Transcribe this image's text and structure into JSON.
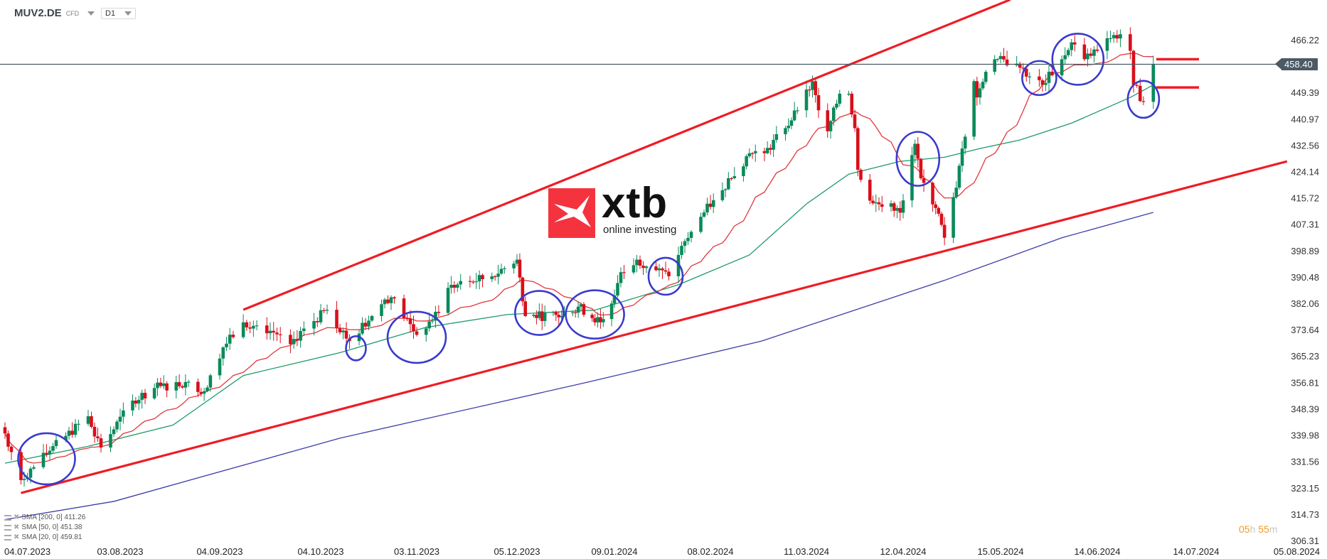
{
  "header": {
    "symbol": "MUV2.DE",
    "instrument_type": "CFD",
    "timeframe": "D1"
  },
  "logo": {
    "brand": "xtb",
    "tagline": "online investing",
    "color": "#f4333f"
  },
  "countdown": {
    "hours": "05",
    "h_unit": "h",
    "minutes": "55",
    "m_unit": "m"
  },
  "legend": [
    {
      "label": "SMA [200, 0] 411.26"
    },
    {
      "label": "SMA [50, 0] 451.38"
    },
    {
      "label": "SMA [20, 0] 459.81"
    }
  ],
  "chart_data": {
    "type": "candlestick",
    "symbol": "MUV2.DE",
    "current_price": 458.4,
    "current_price_label": "458.40",
    "y_ticks": [
      "466.22",
      "458.40",
      "449.39",
      "440.97",
      "432.56",
      "424.14",
      "415.72",
      "407.31",
      "398.89",
      "390.48",
      "382.06",
      "373.64",
      "365.23",
      "356.81",
      "348.39",
      "339.98",
      "331.56",
      "323.15",
      "314.73",
      "306.31"
    ],
    "ylim": [
      306.31,
      466.22
    ],
    "x_ticks": [
      {
        "label": "04.07.2023",
        "date": "2023-07-04"
      },
      {
        "label": "03.08.2023",
        "date": "2023-08-03"
      },
      {
        "label": "04.09.2023",
        "date": "2023-09-04"
      },
      {
        "label": "04.10.2023",
        "date": "2023-10-04"
      },
      {
        "label": "03.11.2023",
        "date": "2023-11-03"
      },
      {
        "label": "05.12.2023",
        "date": "2023-12-05"
      },
      {
        "label": "09.01.2024",
        "date": "2024-01-09"
      },
      {
        "label": "08.02.2024",
        "date": "2024-02-08"
      },
      {
        "label": "11.03.2024",
        "date": "2024-03-11"
      },
      {
        "label": "12.04.2024",
        "date": "2024-04-12"
      },
      {
        "label": "15.05.2024",
        "date": "2024-05-15"
      },
      {
        "label": "14.06.2024",
        "date": "2024-06-14"
      },
      {
        "label": "14.07.2024",
        "date": "2024-07-14"
      },
      {
        "label": "05.08.2024",
        "date": "2024-08-05"
      }
    ],
    "colors": {
      "up": "#0a8a5a",
      "down": "#d90f1a",
      "sma200": "#3c3ca8",
      "sma50": "#1f9a6a",
      "sma20": "#e0383c",
      "trendline": "#ee1c24",
      "annotation": "#3a3acc",
      "price_line": "#4a5a66"
    },
    "close_anchors": [
      [
        "2023-06-28",
        340.5
      ],
      [
        "2023-07-03",
        325.6
      ],
      [
        "2023-07-12",
        335
      ],
      [
        "2023-07-24",
        346
      ],
      [
        "2023-07-28",
        336
      ],
      [
        "2023-08-07",
        351
      ],
      [
        "2023-08-14",
        355
      ],
      [
        "2023-08-25",
        357
      ],
      [
        "2023-08-30",
        354
      ],
      [
        "2023-09-05",
        368
      ],
      [
        "2023-09-11",
        376
      ],
      [
        "2023-09-15",
        375
      ],
      [
        "2023-09-22",
        372
      ],
      [
        "2023-09-25",
        369
      ],
      [
        "2023-09-29",
        374
      ],
      [
        "2023-10-06",
        380
      ],
      [
        "2023-10-13",
        370
      ],
      [
        "2023-10-20",
        378
      ],
      [
        "2023-10-26",
        384
      ],
      [
        "2023-11-03",
        372
      ],
      [
        "2023-11-10",
        379
      ],
      [
        "2023-11-13",
        387
      ],
      [
        "2023-11-20",
        389
      ],
      [
        "2023-11-27",
        390.7
      ],
      [
        "2023-12-05",
        396
      ],
      [
        "2023-12-08",
        378
      ],
      [
        "2023-12-21",
        378
      ],
      [
        "2023-12-27",
        381
      ],
      [
        "2024-01-04",
        376
      ],
      [
        "2024-01-08",
        382
      ],
      [
        "2024-01-11",
        392
      ],
      [
        "2024-01-16",
        396
      ],
      [
        "2024-01-26",
        390.7
      ],
      [
        "2024-01-29",
        397.5
      ],
      [
        "2024-02-05",
        409.7
      ],
      [
        "2024-02-09",
        415
      ],
      [
        "2024-02-15",
        422
      ],
      [
        "2024-02-21",
        430
      ],
      [
        "2024-02-26",
        430
      ],
      [
        "2024-03-04",
        438
      ],
      [
        "2024-03-08",
        443.7
      ],
      [
        "2024-03-13",
        453
      ],
      [
        "2024-03-15",
        443.7
      ],
      [
        "2024-03-18",
        437
      ],
      [
        "2024-03-22",
        449
      ],
      [
        "2024-03-25",
        449
      ],
      [
        "2024-03-27",
        438
      ],
      [
        "2024-03-28",
        424.7
      ],
      [
        "2024-04-02",
        414
      ],
      [
        "2024-04-08",
        414
      ],
      [
        "2024-04-11",
        411
      ],
      [
        "2024-04-16",
        433
      ],
      [
        "2024-04-18",
        422
      ],
      [
        "2024-04-23",
        412.5
      ],
      [
        "2024-04-26",
        403
      ],
      [
        "2024-04-30",
        419
      ],
      [
        "2024-05-02",
        431.5
      ],
      [
        "2024-05-06",
        453
      ],
      [
        "2024-05-07",
        447.8
      ],
      [
        "2024-05-10",
        456
      ],
      [
        "2024-05-13",
        460
      ],
      [
        "2024-05-20",
        458.6
      ],
      [
        "2024-05-24",
        454.5
      ],
      [
        "2024-05-28",
        451.8
      ],
      [
        "2024-06-03",
        460
      ],
      [
        "2024-06-06",
        465.4
      ],
      [
        "2024-06-10",
        460
      ],
      [
        "2024-06-14",
        462.7
      ],
      [
        "2024-06-17",
        466.7
      ],
      [
        "2024-06-21",
        468
      ],
      [
        "2024-06-24",
        462.7
      ],
      [
        "2024-06-25",
        451.8
      ],
      [
        "2024-06-28",
        446.4
      ],
      [
        "2024-07-01",
        458.4
      ]
    ],
    "series": [
      {
        "name": "SMA [200, 0]",
        "points": [
          [
            "2023-06-28",
            313
          ],
          [
            "2023-08-01",
            318.8
          ],
          [
            "2023-10-10",
            339
          ],
          [
            "2023-12-30",
            356.8
          ],
          [
            "2024-02-25",
            370
          ],
          [
            "2024-04-26",
            389.4
          ],
          [
            "2024-06-03",
            403
          ],
          [
            "2024-07-01",
            411.1
          ]
        ]
      },
      {
        "name": "SMA [50, 0]",
        "points": [
          [
            "2023-06-28",
            331
          ],
          [
            "2023-07-24",
            336.4
          ],
          [
            "2023-08-20",
            343.2
          ],
          [
            "2023-09-11",
            359
          ],
          [
            "2023-10-10",
            366.3
          ],
          [
            "2023-11-06",
            374.4
          ],
          [
            "2023-12-02",
            378.5
          ],
          [
            "2024-01-02",
            379.9
          ],
          [
            "2024-01-29",
            388
          ],
          [
            "2024-02-21",
            397.5
          ],
          [
            "2024-03-11",
            413.8
          ],
          [
            "2024-03-25",
            423.3
          ],
          [
            "2024-04-11",
            427.4
          ],
          [
            "2024-04-26",
            428.7
          ],
          [
            "2024-05-08",
            431.5
          ],
          [
            "2024-05-21",
            434.2
          ],
          [
            "2024-06-06",
            439.6
          ],
          [
            "2024-06-24",
            447.8
          ],
          [
            "2024-07-01",
            451.8
          ]
        ]
      },
      {
        "name": "SMA [20, 0]",
        "computed_from": "close"
      }
    ],
    "trendlines": [
      {
        "name": "upper-channel",
        "from": [
          "2023-09-11",
          380
        ],
        "to": [
          "2024-03-13",
          453.5
        ],
        "extend_to": "2024-05-18"
      },
      {
        "name": "lower-channel",
        "from": [
          "2023-07-03",
          321.5
        ],
        "to": [
          "2024-08-02",
          427.4
        ]
      }
    ],
    "levels": [
      {
        "price": 460
      },
      {
        "price": 451
      }
    ],
    "annotations_circles": [
      [
        "2023-07-11",
        332.4
      ],
      [
        "2023-10-15",
        367.7
      ],
      [
        "2023-11-03",
        371.2
      ],
      [
        "2023-12-13",
        379
      ],
      [
        "2024-01-02",
        378.5
      ],
      [
        "2024-01-25",
        390.7
      ],
      [
        "2024-04-17",
        428.2
      ],
      [
        "2024-05-27",
        454
      ],
      [
        "2024-06-08",
        460
      ],
      [
        "2024-06-28",
        447.2
      ]
    ]
  }
}
